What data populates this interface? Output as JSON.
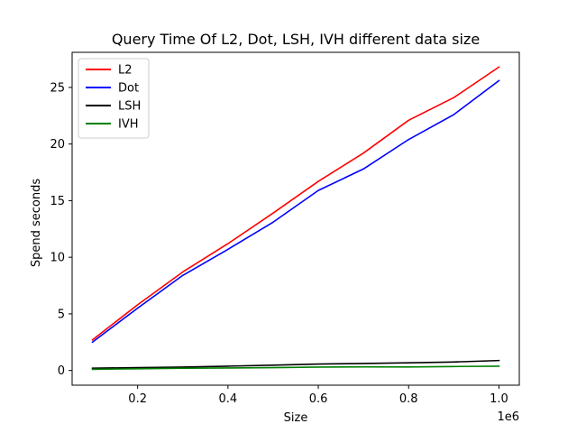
{
  "chart_data": {
    "type": "line",
    "title": "Query Time Of L2, Dot, LSH, IVH different data size",
    "xlabel": "Size",
    "ylabel": "Spend seconds",
    "x_offset_label": "1e6",
    "x": [
      100000,
      200000,
      300000,
      400000,
      500000,
      600000,
      700000,
      800000,
      900000,
      1000000
    ],
    "xlim": [
      55000,
      1045000
    ],
    "ylim": [
      -1.3,
      28.1
    ],
    "x_ticks": [
      200000,
      400000,
      600000,
      800000,
      1000000
    ],
    "x_tick_labels": [
      "0.2",
      "0.4",
      "0.6",
      "0.8",
      "1.0"
    ],
    "y_ticks": [
      0,
      5,
      10,
      15,
      20,
      25
    ],
    "y_tick_labels": [
      "0",
      "5",
      "10",
      "15",
      "20",
      "25"
    ],
    "grid": false,
    "legend_position": "top-left",
    "series": [
      {
        "name": "L2",
        "color": "#ff0000",
        "values": [
          2.7,
          5.8,
          8.7,
          11.2,
          13.9,
          16.7,
          19.2,
          22.1,
          24.1,
          26.8
        ]
      },
      {
        "name": "Dot",
        "color": "#0000ff",
        "values": [
          2.5,
          5.5,
          8.4,
          10.7,
          13.1,
          15.9,
          17.8,
          20.4,
          22.6,
          25.6
        ]
      },
      {
        "name": "LSH",
        "color": "#000000",
        "values": [
          0.2,
          0.25,
          0.3,
          0.38,
          0.47,
          0.57,
          0.62,
          0.68,
          0.75,
          0.88
        ]
      },
      {
        "name": "IVH",
        "color": "#008000",
        "values": [
          0.1,
          0.15,
          0.2,
          0.22,
          0.25,
          0.3,
          0.32,
          0.31,
          0.35,
          0.38
        ]
      }
    ]
  }
}
